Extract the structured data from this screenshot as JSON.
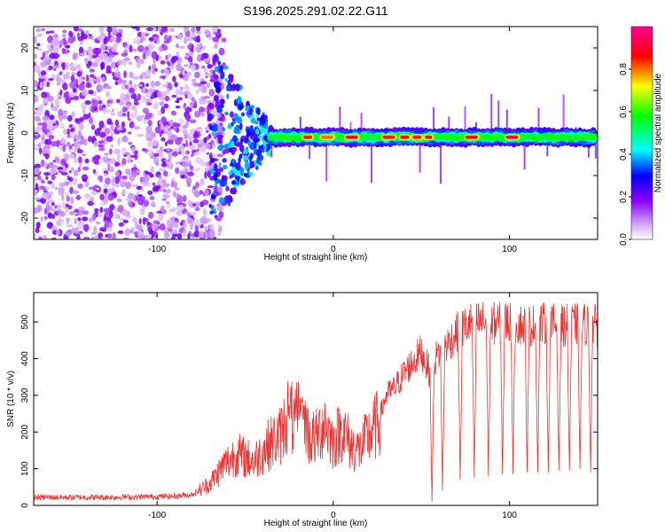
{
  "title": "S196.2025.291.02.22.G11",
  "chart_data": [
    {
      "type": "heatmap",
      "name": "spectrogram",
      "xlabel": "Height of straight line (km)",
      "ylabel": "Frequency (Hz)",
      "xlim": [
        -170,
        150
      ],
      "ylim": [
        -25,
        25
      ],
      "xticks": [
        -100,
        0,
        100
      ],
      "yticks": [
        -20,
        -10,
        0,
        10,
        20
      ],
      "colorbar": {
        "label": "Normalized spectral amplitude",
        "range": [
          0,
          1
        ],
        "ticks": [
          0.0,
          0.2,
          0.4,
          0.6,
          0.8
        ],
        "tick_labels": [
          "0.0",
          "0.2",
          "0.4",
          "0.6",
          "0.8"
        ],
        "colormap": [
          "#ffffff",
          "#8a00ff",
          "#0000ff",
          "#00ffff",
          "#00ff00",
          "#ffff00",
          "#ff0000",
          "#ff00ff"
        ]
      },
      "features": {
        "noise_region_x": [
          -170,
          -70
        ],
        "transition_x": [
          -70,
          -35
        ],
        "tone_line_x": [
          -35,
          150
        ],
        "tone_frequency_hz": -1,
        "tone_amplitude": 0.55,
        "peak_segments": [
          {
            "x": [
              -17,
              -12
            ],
            "amplitude": 0.85
          },
          {
            "x": [
              -7,
              0
            ],
            "amplitude": 0.8
          },
          {
            "x": [
              7,
              14
            ],
            "amplitude": 0.9
          },
          {
            "x": [
              28,
              35
            ],
            "amplitude": 0.85
          },
          {
            "x": [
              38,
              43
            ],
            "amplitude": 0.9
          },
          {
            "x": [
              45,
              50
            ],
            "amplitude": 0.85
          },
          {
            "x": [
              52,
              56
            ],
            "amplitude": 0.9
          },
          {
            "x": [
              75,
              82
            ],
            "amplitude": 0.9
          },
          {
            "x": [
              98,
              105
            ],
            "amplitude": 0.95
          }
        ]
      }
    },
    {
      "type": "line",
      "name": "snr",
      "xlabel": "Height of straight line (km)",
      "ylabel": "SNR (10 * v/v)",
      "xlim": [
        -170,
        150
      ],
      "ylim": [
        0,
        580
      ],
      "xticks": [
        -100,
        0,
        100
      ],
      "yticks": [
        0,
        100,
        200,
        300,
        400,
        500
      ],
      "color": "#ee3333",
      "series": [
        {
          "name": "SNR",
          "x": [
            -170,
            -140,
            -110,
            -90,
            -80,
            -70,
            -62,
            -55,
            -45,
            -38,
            -30,
            -25,
            -22,
            -18,
            -14,
            -10,
            -5,
            0,
            5,
            10,
            15,
            20,
            25,
            30,
            35,
            40,
            45,
            50,
            55,
            58,
            62,
            65,
            70,
            75,
            80,
            85,
            90,
            100,
            110,
            120,
            130,
            140,
            150
          ],
          "values": [
            22,
            22,
            23,
            25,
            30,
            60,
            110,
            140,
            120,
            160,
            190,
            260,
            210,
            280,
            190,
            180,
            230,
            170,
            210,
            160,
            150,
            190,
            220,
            300,
            320,
            360,
            390,
            420,
            360,
            400,
            430,
            440,
            470,
            490,
            500,
            500,
            495,
            500,
            490,
            495,
            490,
            495,
            490
          ]
        }
      ],
      "dropouts": [
        {
          "x": 56,
          "min": 10
        },
        {
          "x": 62,
          "min": 40
        },
        {
          "x": 72,
          "min": 70
        },
        {
          "x": 80,
          "min": 75
        },
        {
          "x": 88,
          "min": 80
        },
        {
          "x": 96,
          "min": 85
        },
        {
          "x": 102,
          "min": 85
        },
        {
          "x": 110,
          "min": 90
        },
        {
          "x": 116,
          "min": 90
        },
        {
          "x": 122,
          "min": 90
        },
        {
          "x": 128,
          "min": 95
        },
        {
          "x": 134,
          "min": 95
        },
        {
          "x": 140,
          "min": 100
        },
        {
          "x": 146,
          "min": 90
        }
      ]
    }
  ]
}
